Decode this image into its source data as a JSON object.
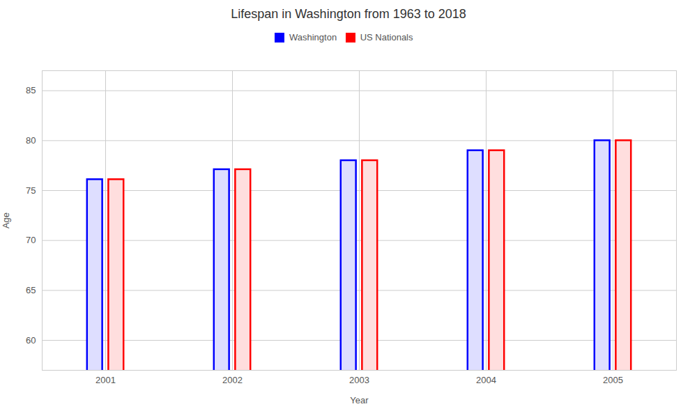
{
  "chart_data": {
    "type": "bar",
    "title": "Lifespan in Washington from 1963 to 2018",
    "xlabel": "Year",
    "ylabel": "Age",
    "categories": [
      "2001",
      "2002",
      "2003",
      "2004",
      "2005"
    ],
    "series": [
      {
        "name": "Washington",
        "color": "#0000ff",
        "values": [
          76.1,
          77.1,
          78.0,
          79.0,
          80.0
        ]
      },
      {
        "name": "US Nationals",
        "color": "#ff0000",
        "values": [
          76.1,
          77.1,
          78.0,
          79.0,
          80.0
        ]
      }
    ],
    "ylim": [
      57,
      87
    ],
    "yticks": [
      60,
      65,
      70,
      75,
      80,
      85
    ],
    "grid": true,
    "legend": "top"
  }
}
